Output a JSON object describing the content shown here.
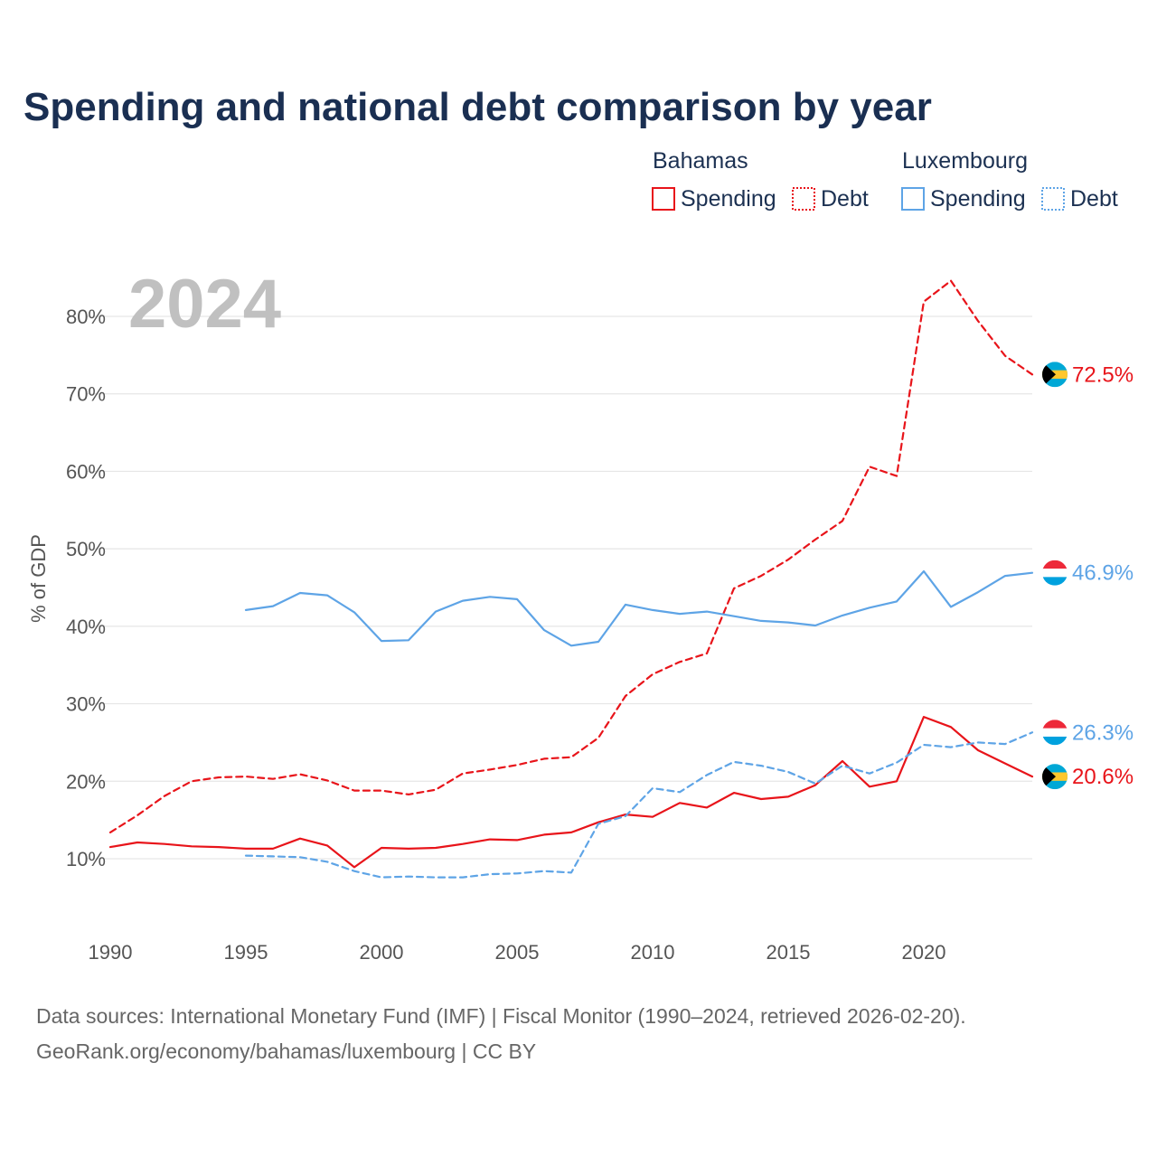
{
  "title": "Spending and national debt comparison by year",
  "year_label": "2024",
  "source_lines": [
    "Data sources: International Monetary Fund (IMF) | Fiscal Monitor (1990–2024, retrieved 2026-02-20).",
    "GeoRank.org/economy/bahamas/luxembourg | CC BY"
  ],
  "colors": {
    "bahamas": "#e8141a",
    "luxembourg": "#5ea4e6"
  },
  "legend": {
    "groups": [
      {
        "name": "Bahamas",
        "items": [
          "Spending",
          "Debt"
        ]
      },
      {
        "name": "Luxembourg",
        "items": [
          "Spending",
          "Debt"
        ]
      }
    ]
  },
  "chart_data": {
    "type": "line",
    "title": "Spending and national debt comparison by year",
    "xlabel": "",
    "ylabel": "% of GDP",
    "xlim": [
      1990,
      2024
    ],
    "ylim": [
      2,
      88
    ],
    "xticks": [
      1990,
      1995,
      2000,
      2005,
      2010,
      2015,
      2020
    ],
    "yticks": [
      10,
      20,
      30,
      40,
      50,
      60,
      70,
      80
    ],
    "ytick_labels": [
      "10%",
      "20%",
      "30%",
      "40%",
      "50%",
      "60%",
      "70%",
      "80%"
    ],
    "grid": true,
    "series": [
      {
        "name": "Bahamas Spending",
        "country": "bahamas",
        "style": "solid",
        "x": [
          1990,
          1991,
          1992,
          1993,
          1994,
          1995,
          1996,
          1997,
          1998,
          1999,
          2000,
          2001,
          2002,
          2003,
          2004,
          2005,
          2006,
          2007,
          2008,
          2009,
          2010,
          2011,
          2012,
          2013,
          2014,
          2015,
          2016,
          2017,
          2018,
          2019,
          2020,
          2021,
          2022,
          2023,
          2024
        ],
        "values": [
          11.5,
          12.1,
          11.9,
          11.6,
          11.5,
          11.3,
          11.3,
          12.6,
          11.7,
          8.9,
          11.4,
          11.3,
          11.4,
          11.9,
          12.5,
          12.4,
          13.1,
          13.4,
          14.7,
          15.7,
          15.4,
          17.2,
          16.6,
          18.5,
          17.7,
          18.0,
          19.5,
          22.6,
          19.3,
          20.0,
          28.3,
          27.0,
          24.0,
          22.3,
          20.6
        ],
        "end_label": "20.6%"
      },
      {
        "name": "Bahamas Debt",
        "country": "bahamas",
        "style": "dashed",
        "x": [
          1990,
          1991,
          1992,
          1993,
          1994,
          1995,
          1996,
          1997,
          1998,
          1999,
          2000,
          2001,
          2002,
          2003,
          2004,
          2005,
          2006,
          2007,
          2008,
          2009,
          2010,
          2011,
          2012,
          2013,
          2014,
          2015,
          2016,
          2017,
          2018,
          2019,
          2020,
          2021,
          2022,
          2023,
          2024
        ],
        "values": [
          13.4,
          15.6,
          18.1,
          20.0,
          20.5,
          20.6,
          20.3,
          20.9,
          20.1,
          18.8,
          18.8,
          18.3,
          18.9,
          21.0,
          21.5,
          22.1,
          22.9,
          23.1,
          25.6,
          31.0,
          33.8,
          35.4,
          36.5,
          44.9,
          46.5,
          48.6,
          51.2,
          53.6,
          60.6,
          59.4,
          81.9,
          84.6,
          79.4,
          74.9,
          72.5
        ],
        "end_label": "72.5%"
      },
      {
        "name": "Luxembourg Spending",
        "country": "luxembourg",
        "style": "solid",
        "x": [
          1995,
          1996,
          1997,
          1998,
          1999,
          2000,
          2001,
          2002,
          2003,
          2004,
          2005,
          2006,
          2007,
          2008,
          2009,
          2010,
          2011,
          2012,
          2013,
          2014,
          2015,
          2016,
          2017,
          2018,
          2019,
          2020,
          2021,
          2022,
          2023,
          2024
        ],
        "values": [
          42.1,
          42.6,
          44.3,
          44.0,
          41.8,
          38.1,
          38.2,
          41.9,
          43.3,
          43.8,
          43.5,
          39.5,
          37.5,
          38.0,
          42.8,
          42.1,
          41.6,
          41.9,
          41.3,
          40.7,
          40.5,
          40.1,
          41.4,
          42.4,
          43.2,
          47.1,
          42.5,
          44.4,
          46.5,
          46.9
        ],
        "end_label": "46.9%"
      },
      {
        "name": "Luxembourg Debt",
        "country": "luxembourg",
        "style": "dashed",
        "x": [
          1995,
          1996,
          1997,
          1998,
          1999,
          2000,
          2001,
          2002,
          2003,
          2004,
          2005,
          2006,
          2007,
          2008,
          2009,
          2010,
          2011,
          2012,
          2013,
          2014,
          2015,
          2016,
          2017,
          2018,
          2019,
          2020,
          2021,
          2022,
          2023,
          2024
        ],
        "values": [
          10.4,
          10.3,
          10.2,
          9.6,
          8.4,
          7.6,
          7.7,
          7.6,
          7.6,
          8.0,
          8.1,
          8.4,
          8.2,
          14.5,
          15.5,
          19.1,
          18.6,
          20.8,
          22.5,
          22.0,
          21.2,
          19.7,
          22.0,
          21.0,
          22.4,
          24.7,
          24.4,
          25.0,
          24.8,
          26.3
        ],
        "end_label": "26.3%"
      }
    ],
    "end_label_positions": [
      {
        "series": "Bahamas Debt",
        "value": 72.5
      },
      {
        "series": "Luxembourg Spending",
        "value": 46.9
      },
      {
        "series": "Luxembourg Debt",
        "value": 26.3
      },
      {
        "series": "Bahamas Spending",
        "value": 20.6
      }
    ]
  }
}
